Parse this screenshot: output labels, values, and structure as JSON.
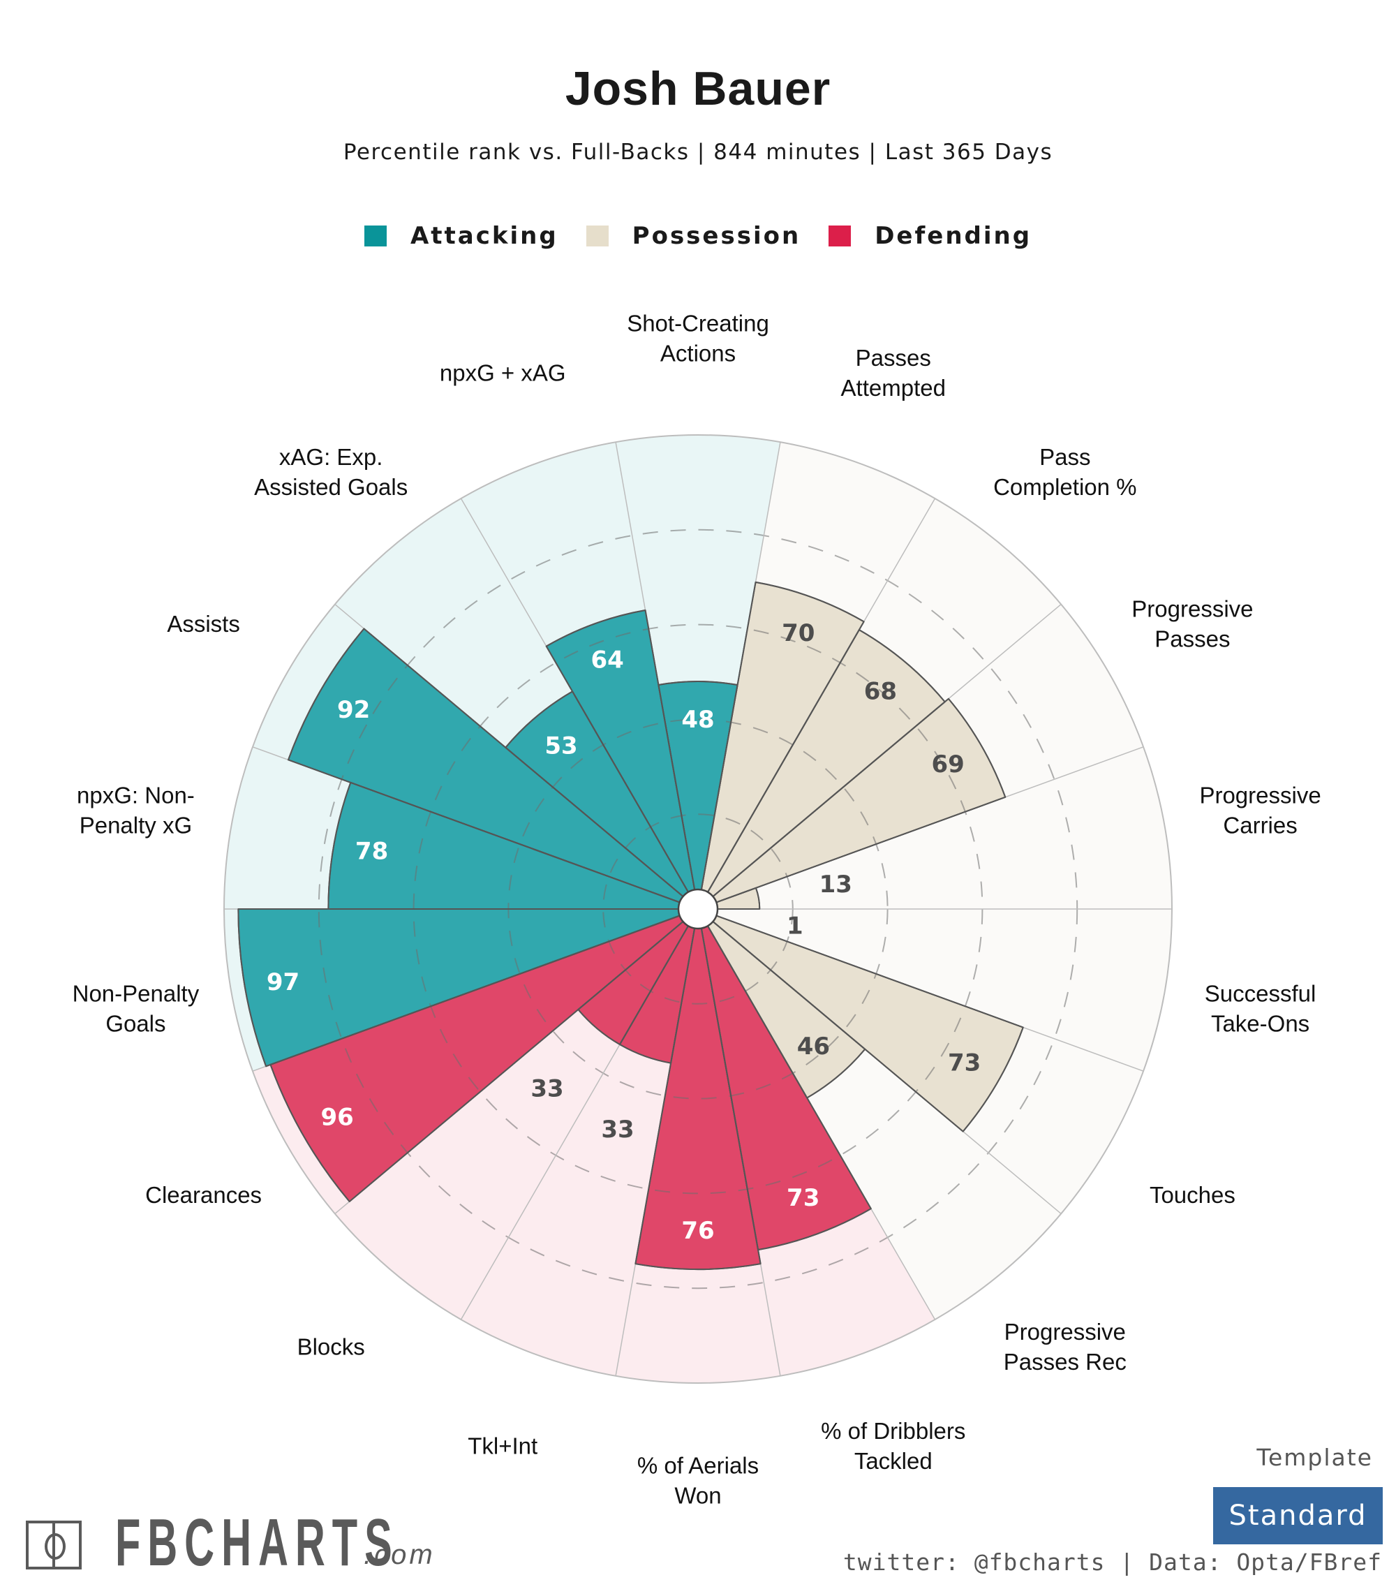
{
  "header": {
    "title": "Josh Bauer",
    "subtitle": "Percentile rank vs. Full-Backs | 844 minutes | Last 365 Days"
  },
  "legend": [
    {
      "label": "Attacking",
      "color": "#0a9499"
    },
    {
      "label": "Possession",
      "color": "#e6decb"
    },
    {
      "label": "Defending",
      "color": "#dc1f4a"
    }
  ],
  "colors": {
    "attacking_bar": "#31a8ae",
    "attacking_bg": "#e9f6f6",
    "possession_bar": "#e8e1d1",
    "possession_bg": "#fbfaf8",
    "defending_bar": "#e04769",
    "defending_bg": "#fcecef",
    "value_dark": "#4d4d4d",
    "value_light": "#ffffff"
  },
  "chart_data": {
    "type": "polar-bar",
    "title": "Josh Bauer",
    "subtitle": "Percentile rank vs. Full-Backs | 844 minutes | Last 365 Days",
    "rlim": [
      0,
      100
    ],
    "grid_rings": [
      20,
      40,
      60,
      80
    ],
    "legend_position": "top-center",
    "series": [
      {
        "category": "Shot-Creating Actions",
        "label_lines": [
          "Shot-Creating",
          "Actions"
        ],
        "group": "attacking",
        "value": 48
      },
      {
        "category": "npxG + xAG",
        "label_lines": [
          "npxG + xAG"
        ],
        "group": "attacking",
        "value": 64
      },
      {
        "category": "xAG: Exp. Assisted Goals",
        "label_lines": [
          "xAG: Exp.",
          "Assisted Goals"
        ],
        "group": "attacking",
        "value": 53
      },
      {
        "category": "Assists",
        "label_lines": [
          "Assists"
        ],
        "group": "attacking",
        "value": 92
      },
      {
        "category": "npxG: Non-Penalty xG",
        "label_lines": [
          "npxG: Non-",
          "Penalty xG"
        ],
        "group": "attacking",
        "value": 78
      },
      {
        "category": "Non-Penalty Goals",
        "label_lines": [
          "Non-Penalty",
          "Goals"
        ],
        "group": "attacking",
        "value": 97
      },
      {
        "category": "Clearances",
        "label_lines": [
          "Clearances"
        ],
        "group": "defending",
        "value": 96
      },
      {
        "category": "Blocks",
        "label_lines": [
          "Blocks"
        ],
        "group": "defending",
        "value": 33
      },
      {
        "category": "Tkl+Int",
        "label_lines": [
          "Tkl+Int"
        ],
        "group": "defending",
        "value": 33
      },
      {
        "category": "% of Aerials Won",
        "label_lines": [
          "% of Aerials",
          "Won"
        ],
        "group": "defending",
        "value": 76
      },
      {
        "category": "% of Dribblers Tackled",
        "label_lines": [
          "% of Dribblers",
          "Tackled"
        ],
        "group": "defending",
        "value": 73
      },
      {
        "category": "Progressive Passes Rec",
        "label_lines": [
          "Progressive",
          "Passes Rec"
        ],
        "group": "possession",
        "value": 46
      },
      {
        "category": "Touches",
        "label_lines": [
          "Touches"
        ],
        "group": "possession",
        "value": 73
      },
      {
        "category": "Successful Take-Ons",
        "label_lines": [
          "Successful",
          "Take-Ons"
        ],
        "group": "possession",
        "value": 1
      },
      {
        "category": "Progressive Carries",
        "label_lines": [
          "Progressive",
          "Carries"
        ],
        "group": "possession",
        "value": 13
      },
      {
        "category": "Progressive Passes",
        "label_lines": [
          "Progressive",
          "Passes"
        ],
        "group": "possession",
        "value": 69
      },
      {
        "category": "Pass Completion %",
        "label_lines": [
          "Pass",
          "Completion %"
        ],
        "group": "possession",
        "value": 68
      },
      {
        "category": "Passes Attempted",
        "label_lines": [
          "Passes",
          "Attempted"
        ],
        "group": "possession",
        "value": 70
      }
    ]
  },
  "footer": {
    "logo_text": "FBCHARTS",
    "logo_suffix": ".com",
    "template_label": "Template",
    "template_value": "Standard",
    "credits": "twitter: @fbcharts | Data: Opta/FBref"
  }
}
